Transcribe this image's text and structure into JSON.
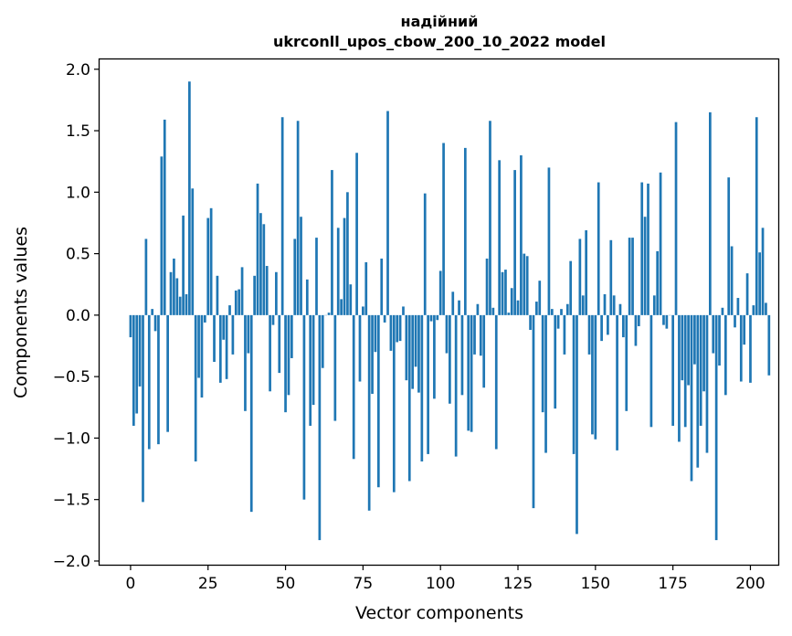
{
  "chart_data": {
    "type": "bar",
    "title_line1": "надійний",
    "title_line2": "ukrconll_upos_cbow_200_10_2022 model",
    "xlabel": "Vector components",
    "ylabel": "Components values",
    "xlim": [
      -10,
      209
    ],
    "ylim": [
      -2.03,
      2.08
    ],
    "xticks": [
      0,
      25,
      50,
      75,
      100,
      125,
      150,
      175,
      200
    ],
    "yticks": [
      2.0,
      1.5,
      1.0,
      0.5,
      0.0,
      -0.5,
      -1.0,
      -1.5,
      -2.0
    ],
    "ytick_labels": [
      "2.0",
      "1.5",
      "1.0",
      "0.5",
      "0.0",
      "−0.5",
      "−1.0",
      "−1.5",
      "−2.0"
    ],
    "bar_color": "#1f77b4",
    "values": [
      -0.18,
      -0.9,
      -0.8,
      -0.58,
      -1.52,
      0.62,
      -1.09,
      0.05,
      -0.13,
      -1.05,
      1.29,
      1.59,
      -0.95,
      0.35,
      0.46,
      0.3,
      0.15,
      0.81,
      0.17,
      1.9,
      1.03,
      -1.19,
      -0.51,
      -0.67,
      -0.06,
      0.79,
      0.87,
      -0.38,
      0.32,
      -0.55,
      -0.2,
      -0.52,
      0.08,
      -0.32,
      0.2,
      0.21,
      0.39,
      -0.78,
      -0.31,
      -1.6,
      0.32,
      1.07,
      0.83,
      0.74,
      0.4,
      -0.62,
      -0.08,
      0.35,
      -0.47,
      1.61,
      -0.79,
      -0.65,
      -0.35,
      0.62,
      1.58,
      0.8,
      -1.5,
      0.29,
      -0.9,
      -0.73,
      0.63,
      -1.83,
      -0.43,
      0.0,
      0.02,
      1.18,
      -0.86,
      0.71,
      0.13,
      0.79,
      1.0,
      0.25,
      -1.17,
      1.32,
      -0.54,
      0.07,
      0.43,
      -1.59,
      -0.64,
      -0.3,
      -1.4,
      0.46,
      -0.06,
      1.66,
      -0.29,
      -1.44,
      -0.22,
      -0.21,
      0.07,
      -0.53,
      -1.35,
      -0.6,
      -0.42,
      -0.63,
      -1.19,
      0.99,
      -1.13,
      -0.05,
      -0.68,
      -0.04,
      0.36,
      1.4,
      -0.31,
      -0.72,
      0.19,
      -1.15,
      0.12,
      -0.65,
      1.36,
      -0.94,
      -0.95,
      -0.32,
      0.09,
      -0.33,
      -0.59,
      0.46,
      1.58,
      0.06,
      -1.09,
      1.26,
      0.35,
      0.37,
      0.02,
      0.22,
      1.18,
      0.12,
      1.3,
      0.5,
      0.48,
      -0.12,
      -1.57,
      0.11,
      0.28,
      -0.79,
      -1.12,
      1.2,
      0.05,
      -0.76,
      -0.11,
      0.05,
      -0.32,
      0.09,
      0.44,
      -1.13,
      -1.78,
      0.62,
      0.16,
      0.69,
      -0.32,
      -0.97,
      -1.01,
      1.08,
      -0.21,
      0.17,
      -0.16,
      0.61,
      0.16,
      -1.1,
      0.09,
      -0.18,
      -0.78,
      0.63,
      0.63,
      -0.25,
      -0.09,
      1.08,
      0.8,
      1.07,
      -0.91,
      0.16,
      0.52,
      1.16,
      -0.08,
      -0.11,
      0.0,
      -0.9,
      1.57,
      -1.03,
      -0.53,
      -0.91,
      -0.57,
      -1.35,
      -0.4,
      -1.24,
      -0.9,
      -0.62,
      -1.12,
      1.65,
      -0.31,
      -1.83,
      -0.41,
      0.06,
      -0.65,
      1.12,
      0.56,
      -0.1,
      0.14,
      -0.54,
      -0.24,
      0.34,
      -0.55,
      0.08,
      1.61,
      0.51,
      0.71,
      0.1,
      -0.49
    ]
  }
}
